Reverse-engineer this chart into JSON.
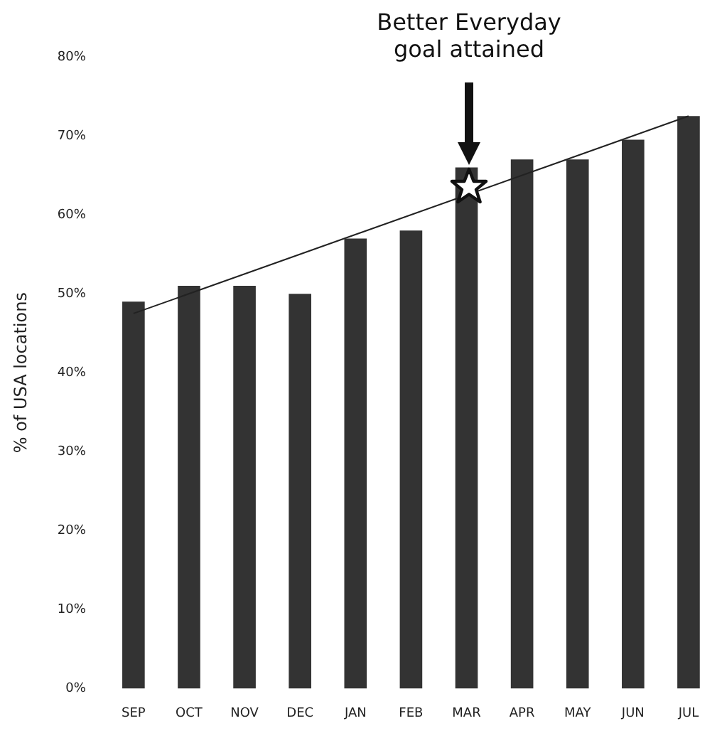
{
  "chart_data": {
    "type": "bar",
    "categories": [
      "SEP",
      "OCT",
      "NOV",
      "DEC",
      "JAN",
      "FEB",
      "MAR",
      "APR",
      "MAY",
      "JUN",
      "JUL"
    ],
    "ylabel": "% of USA locations",
    "series": [
      {
        "color": "#333333",
        "values": [
          49,
          51,
          51,
          50,
          57,
          58,
          66,
          67,
          67,
          69.5,
          72.5
        ]
      },
      {
        "type": "line",
        "color": "#222222",
        "x": [
          "SEP",
          "JUL"
        ],
        "values": [
          47.5,
          72.5
        ]
      }
    ],
    "ylim": [
      0,
      80
    ],
    "yticks": [
      {
        "value": 0,
        "label": "0%"
      },
      {
        "value": 10,
        "label": "10%"
      },
      {
        "value": 20,
        "label": "20%"
      },
      {
        "value": 30,
        "label": "30%"
      },
      {
        "value": 40,
        "label": "40%"
      },
      {
        "value": 50,
        "label": "50%"
      },
      {
        "value": 60,
        "label": "60%"
      },
      {
        "value": 70,
        "label": "70%"
      },
      {
        "value": 80,
        "label": "80%"
      }
    ],
    "annotations": [
      "Better Everyday goal attained"
    ],
    "grid": false,
    "legend": false,
    "marker": "none"
  }
}
